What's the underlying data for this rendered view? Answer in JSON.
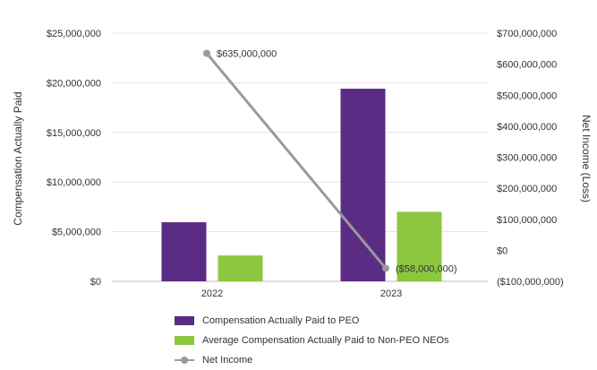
{
  "chart_data": {
    "type": "bar+line",
    "categories": [
      "2022",
      "2023"
    ],
    "series": [
      {
        "name": "Compensation Actually Paid to PEO",
        "kind": "bar",
        "axis": "left",
        "color": "#5b2c83",
        "values": [
          5950000,
          19400000
        ]
      },
      {
        "name": "Average Compensation Actually Paid to Non-PEO NEOs",
        "kind": "bar",
        "axis": "left",
        "color": "#8dc63f",
        "values": [
          2600000,
          7000000
        ]
      },
      {
        "name": "Net Income",
        "kind": "line",
        "axis": "right",
        "color": "#9a9a9a",
        "values": [
          635000000,
          -58000000
        ]
      }
    ],
    "data_labels": [
      {
        "series": "Net Income",
        "category": "2022",
        "text": "$635,000,000",
        "color": "#333333"
      },
      {
        "series": "Net Income",
        "category": "2023",
        "text": "($58,000,000)",
        "color": "#d0202a"
      }
    ],
    "y_left": {
      "label": "Compensation Actually Paid",
      "ylim": [
        0,
        25000000
      ],
      "ticks": [
        {
          "value": 0,
          "label": "$0"
        },
        {
          "value": 5000000,
          "label": "$5,000,000"
        },
        {
          "value": 10000000,
          "label": "$10,000,000"
        },
        {
          "value": 15000000,
          "label": "$15,000,000"
        },
        {
          "value": 20000000,
          "label": "$20,000,000"
        },
        {
          "value": 25000000,
          "label": "$25,000,000"
        }
      ]
    },
    "y_right": {
      "label": "Net Income (Loss)",
      "ylim": [
        -100000000,
        700000000
      ],
      "ticks": [
        {
          "value": -100000000,
          "label": "($100,000,000)",
          "color": "#d0202a"
        },
        {
          "value": 0,
          "label": "$0"
        },
        {
          "value": 100000000,
          "label": "$100,000,000"
        },
        {
          "value": 200000000,
          "label": "$200,000,000"
        },
        {
          "value": 300000000,
          "label": "$300,000,000"
        },
        {
          "value": 400000000,
          "label": "$400,000,000"
        },
        {
          "value": 500000000,
          "label": "$500,000,000"
        },
        {
          "value": 600000000,
          "label": "$600,000,000"
        },
        {
          "value": 700000000,
          "label": "$700,000,000"
        }
      ]
    },
    "grid": true,
    "legend_position": "bottom"
  }
}
